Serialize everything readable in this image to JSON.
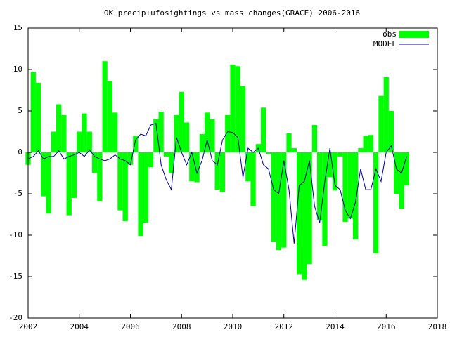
{
  "chart_data": {
    "type": "bar-line",
    "title": "OK precip+ufosightings vs mass changes(GRACE) 2006-2016",
    "x": [
      2002.0,
      2002.2,
      2002.4,
      2002.6,
      2002.8,
      2003.0,
      2003.2,
      2003.4,
      2003.6,
      2003.8,
      2004.0,
      2004.2,
      2004.4,
      2004.6,
      2004.8,
      2005.0,
      2005.2,
      2005.4,
      2005.6,
      2005.8,
      2006.0,
      2006.2,
      2006.4,
      2006.6,
      2006.8,
      2007.0,
      2007.2,
      2007.4,
      2007.6,
      2007.8,
      2008.0,
      2008.2,
      2008.4,
      2008.6,
      2008.8,
      2009.0,
      2009.2,
      2009.4,
      2009.6,
      2009.8,
      2010.0,
      2010.2,
      2010.4,
      2010.6,
      2010.8,
      2011.0,
      2011.2,
      2011.4,
      2011.6,
      2011.8,
      2012.0,
      2012.2,
      2012.4,
      2012.6,
      2012.8,
      2013.0,
      2013.2,
      2013.4,
      2013.6,
      2013.8,
      2014.0,
      2014.2,
      2014.4,
      2014.6,
      2014.8,
      2015.0,
      2015.2,
      2015.4,
      2015.6,
      2015.8,
      2016.0,
      2016.2,
      2016.4,
      2016.6,
      2016.8
    ],
    "series": [
      {
        "name": "obs",
        "color": "#00ff00",
        "kind": "bar",
        "values": [
          -1.5,
          9.7,
          8.4,
          -5.3,
          -7.4,
          2.5,
          5.8,
          4.5,
          -7.6,
          -5.5,
          2.5,
          4.7,
          2.5,
          -2.5,
          -5.9,
          11.0,
          8.6,
          4.8,
          -7.0,
          -8.3,
          -1.5,
          2.0,
          -10.1,
          -8.5,
          -1.8,
          4.0,
          4.9,
          -0.5,
          -2.5,
          4.5,
          7.3,
          3.6,
          -3.5,
          -3.6,
          2.2,
          4.8,
          4.0,
          -4.5,
          -4.8,
          4.5,
          10.6,
          10.4,
          8.0,
          -3.5,
          -6.5,
          1.0,
          5.4,
          -0.2,
          -10.8,
          -11.8,
          -11.5,
          2.3,
          0.5,
          -14.7,
          -15.4,
          -13.5,
          3.3,
          -8.2,
          -11.3,
          -3.0,
          -4.6,
          -0.5,
          -8.4,
          -8.0,
          -10.5,
          0.5,
          2.0,
          2.1,
          -12.2,
          6.8,
          9.1,
          5.0,
          -5.0,
          -6.8,
          -4.0
        ]
      },
      {
        "name": "MODEL",
        "color": "#0000a0",
        "kind": "line",
        "values": [
          -0.8,
          -0.5,
          0.2,
          -0.8,
          -0.5,
          -0.5,
          0.2,
          -0.8,
          -0.5,
          -0.3,
          0.0,
          -0.5,
          0.3,
          -0.5,
          -0.8,
          -1.0,
          -0.8,
          -0.3,
          -0.8,
          -1.0,
          -1.5,
          1.5,
          2.2,
          2.0,
          3.3,
          3.5,
          -1.5,
          -3.3,
          -4.5,
          1.8,
          0.0,
          -1.5,
          0.0,
          -2.5,
          -1.0,
          1.5,
          -1.0,
          -1.5,
          1.5,
          2.5,
          2.4,
          1.8,
          -3.0,
          0.5,
          0.0,
          0.5,
          -1.5,
          -2.0,
          -4.5,
          -5.0,
          -1.0,
          -4.5,
          -11.0,
          -4.0,
          -3.5,
          -1.0,
          -6.5,
          -8.5,
          -3.5,
          0.5,
          -4.0,
          -4.5,
          -7.0,
          -8.0,
          -6.0,
          -2.0,
          -4.5,
          -4.5,
          -2.0,
          -3.5,
          0.0,
          0.8,
          -2.0,
          -2.5,
          -0.5
        ]
      }
    ],
    "xlim": [
      2002,
      2018
    ],
    "xticks": [
      2002,
      2004,
      2006,
      2008,
      2010,
      2012,
      2014,
      2016,
      2018
    ],
    "ylim": [
      -20,
      15
    ],
    "yticks": [
      -20,
      -15,
      -10,
      -5,
      0,
      5,
      10,
      15
    ],
    "grid": false,
    "legend": "top-right"
  }
}
